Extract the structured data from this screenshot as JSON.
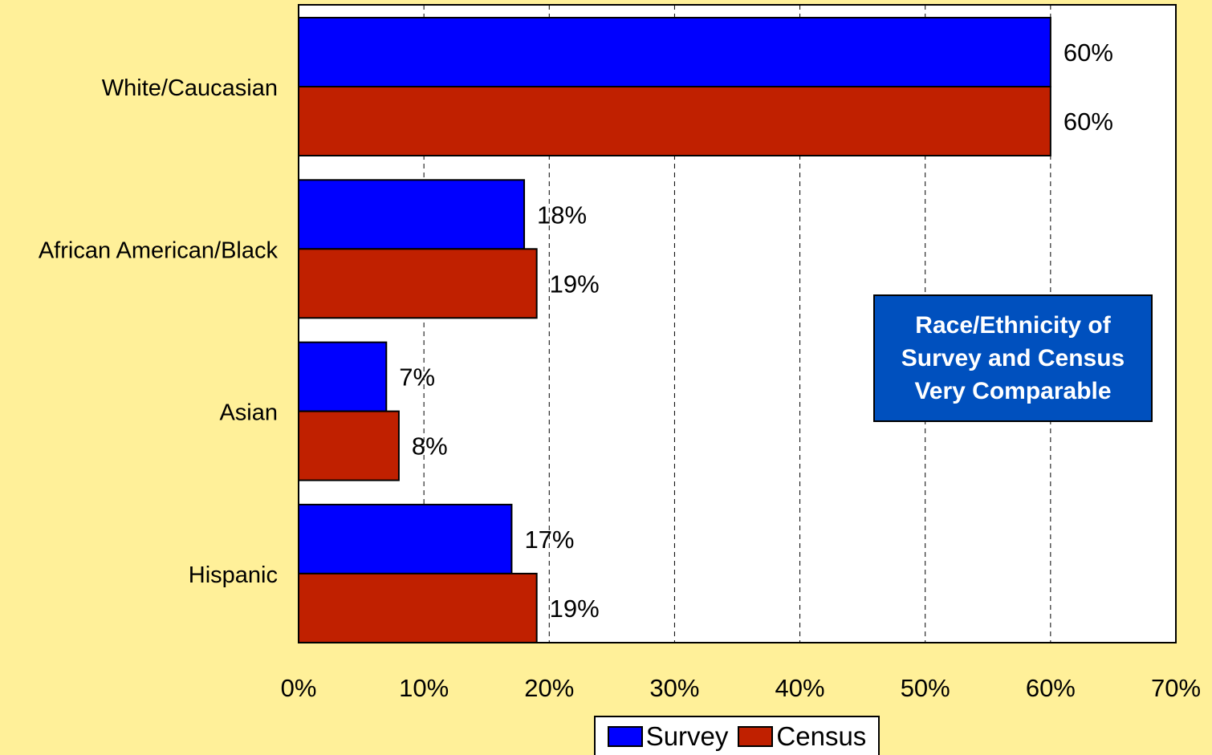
{
  "chart_data": {
    "type": "bar",
    "orientation": "horizontal",
    "categories": [
      "White/Caucasian",
      "African American/Black",
      "Asian",
      "Hispanic"
    ],
    "series": [
      {
        "name": "Survey",
        "values": [
          60,
          18,
          7,
          17
        ],
        "labels": [
          "60%",
          "18%",
          "7%",
          "17%"
        ],
        "color": "#0000FF"
      },
      {
        "name": "Census",
        "values": [
          60,
          19,
          8,
          19
        ],
        "labels": [
          "60%",
          "19%",
          "8%",
          "19%"
        ],
        "color": "#C02000"
      }
    ],
    "xlim": [
      0,
      70
    ],
    "x_ticks": [
      0,
      10,
      20,
      30,
      40,
      50,
      60,
      70
    ],
    "x_tick_labels": [
      "0%",
      "10%",
      "20%",
      "30%",
      "40%",
      "50%",
      "60%",
      "70%"
    ],
    "grid": "vertical-dashed",
    "legend_position": "bottom",
    "annotation": "Race/Ethnicity of Survey and Census Very Comparable"
  },
  "colors": {
    "background": "#FFF099",
    "plot_area": "#FFFFFF",
    "callout_bg": "#0050BE"
  }
}
